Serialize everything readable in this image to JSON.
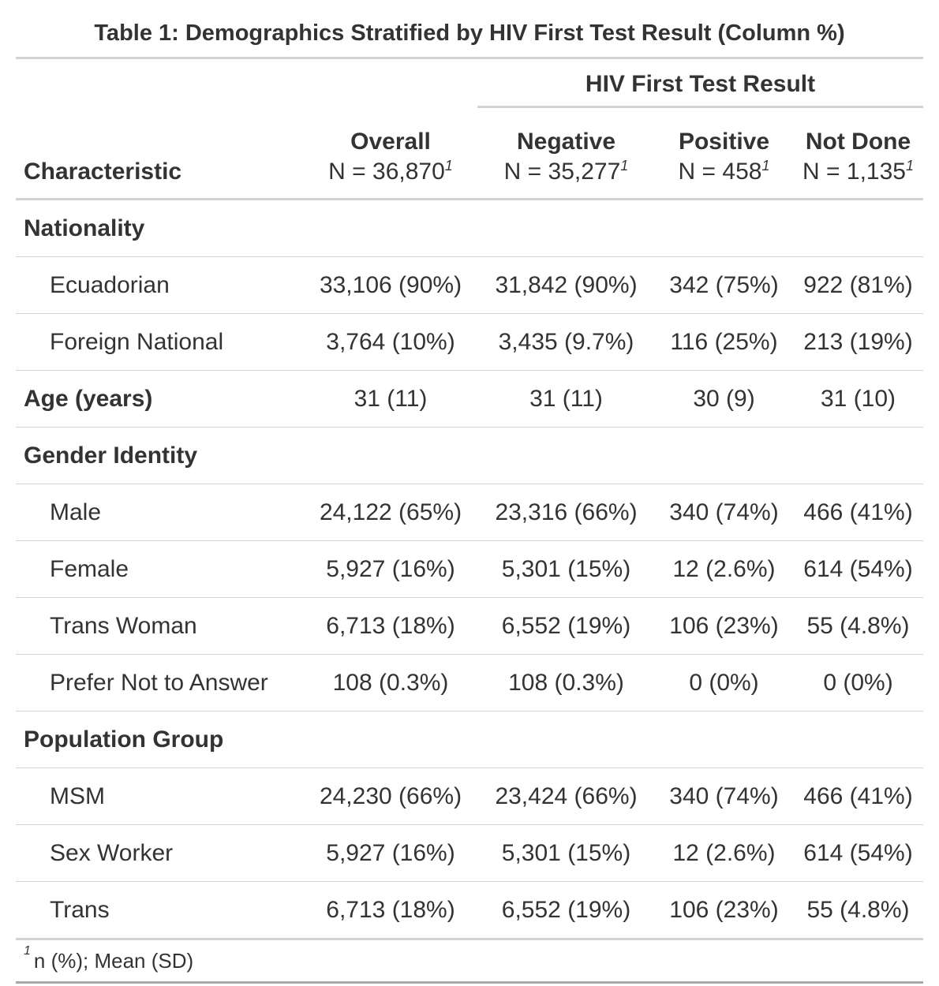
{
  "title": "Table 1: Demographics Stratified by HIV First Test Result (Column %)",
  "spanner": "HIV First Test Result",
  "columns": {
    "characteristic": "Characteristic",
    "overall": {
      "label": "Overall",
      "n": "N = 36,870"
    },
    "negative": {
      "label": "Negative",
      "n": "N = 35,277"
    },
    "positive": {
      "label": "Positive",
      "n": "N = 458"
    },
    "not_done": {
      "label": "Not Done",
      "n": "N = 1,135"
    }
  },
  "footnote_mark": "1",
  "rows": [
    {
      "label": "Nationality",
      "type": "group",
      "overall": "",
      "negative": "",
      "positive": "",
      "not_done": ""
    },
    {
      "label": "Ecuadorian",
      "type": "sub",
      "overall": "33,106 (90%)",
      "negative": "31,842 (90%)",
      "positive": "342 (75%)",
      "not_done": "922 (81%)"
    },
    {
      "label": "Foreign National",
      "type": "sub",
      "overall": "3,764 (10%)",
      "negative": "3,435 (9.7%)",
      "positive": "116 (25%)",
      "not_done": "213 (19%)"
    },
    {
      "label": "Age (years)",
      "type": "group",
      "overall": "31 (11)",
      "negative": "31 (11)",
      "positive": "30 (9)",
      "not_done": "31 (10)"
    },
    {
      "label": "Gender Identity",
      "type": "group",
      "overall": "",
      "negative": "",
      "positive": "",
      "not_done": ""
    },
    {
      "label": "Male",
      "type": "sub",
      "overall": "24,122 (65%)",
      "negative": "23,316 (66%)",
      "positive": "340 (74%)",
      "not_done": "466 (41%)"
    },
    {
      "label": "Female",
      "type": "sub",
      "overall": "5,927 (16%)",
      "negative": "5,301 (15%)",
      "positive": "12 (2.6%)",
      "not_done": "614 (54%)"
    },
    {
      "label": "Trans Woman",
      "type": "sub",
      "overall": "6,713 (18%)",
      "negative": "6,552 (19%)",
      "positive": "106 (23%)",
      "not_done": "55 (4.8%)"
    },
    {
      "label": "Prefer Not to Answer",
      "type": "sub",
      "overall": "108 (0.3%)",
      "negative": "108 (0.3%)",
      "positive": "0 (0%)",
      "not_done": "0 (0%)"
    },
    {
      "label": "Population Group",
      "type": "group",
      "overall": "",
      "negative": "",
      "positive": "",
      "not_done": ""
    },
    {
      "label": "MSM",
      "type": "sub",
      "overall": "24,230 (66%)",
      "negative": "23,424 (66%)",
      "positive": "340 (74%)",
      "not_done": "466 (41%)"
    },
    {
      "label": "Sex Worker",
      "type": "sub",
      "overall": "5,927 (16%)",
      "negative": "5,301 (15%)",
      "positive": "12 (2.6%)",
      "not_done": "614 (54%)"
    },
    {
      "label": "Trans",
      "type": "sub",
      "overall": "6,713 (18%)",
      "negative": "6,552 (19%)",
      "positive": "106 (23%)",
      "not_done": "55 (4.8%)"
    }
  ],
  "footnote": {
    "mark": "1",
    "text": "n (%); Mean (SD)"
  }
}
